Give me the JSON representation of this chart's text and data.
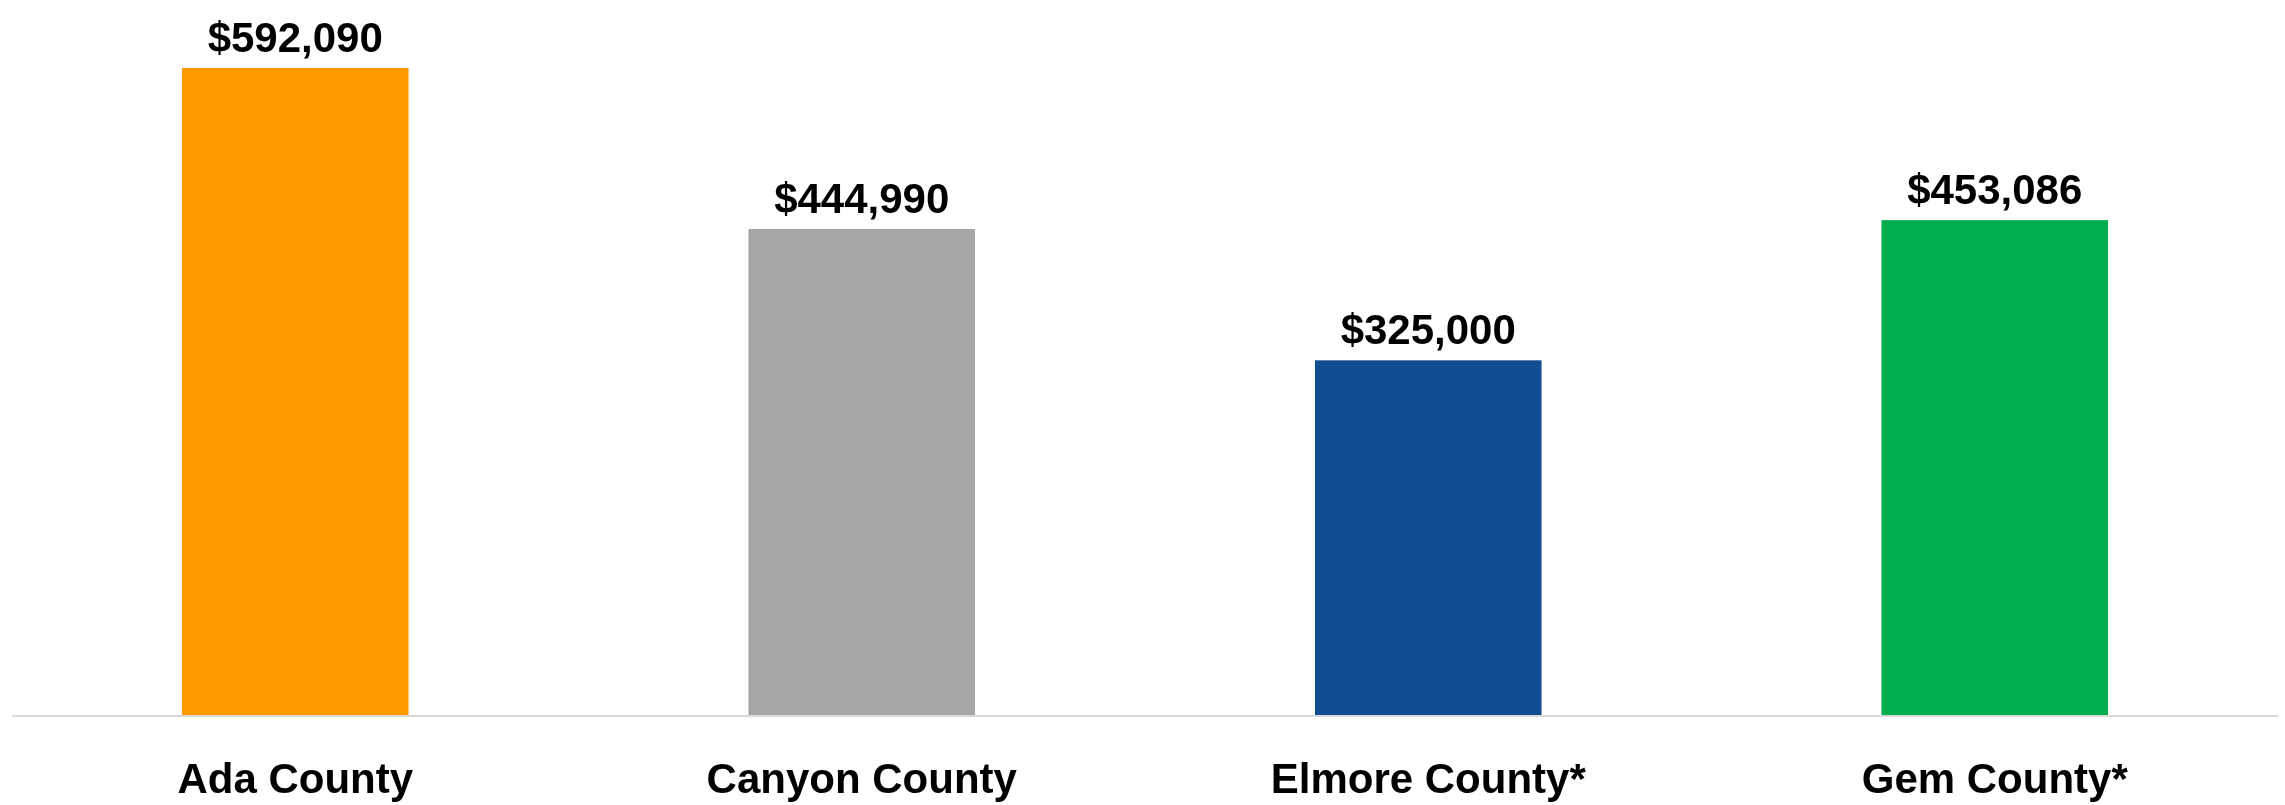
{
  "chart_data": {
    "type": "bar",
    "categories": [
      "Ada County",
      "Canyon County",
      "Elmore County*",
      "Gem County*"
    ],
    "values": [
      592090,
      444990,
      325000,
      453086
    ],
    "colors": [
      "#ff9900",
      "#a6a6a6",
      "#114e91",
      "#00ae50"
    ],
    "value_labels": [
      "$592,090",
      "$444,990",
      "$325,000",
      "$453,086"
    ]
  }
}
